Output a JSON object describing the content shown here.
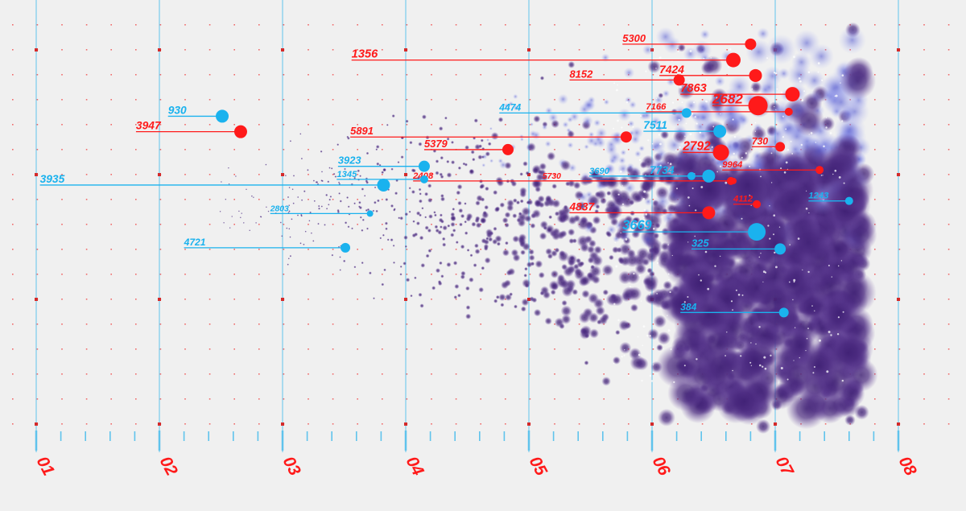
{
  "colors": {
    "background": "#f0f0f0",
    "red": "#ff1a1a",
    "blue": "#1ab2ee",
    "grid_line": "#5fc3ec",
    "grid_dot": "#f06a6a",
    "cloud": "#4b2a80",
    "cloud_light": "#7f86e2"
  },
  "chart_data": {
    "type": "scatter",
    "xlim": [
      0.95,
      8.1
    ],
    "ylim": [
      0,
      10
    ],
    "grid": true,
    "x_ticks": [
      {
        "value": 1,
        "label": "01"
      },
      {
        "value": 2,
        "label": "02"
      },
      {
        "value": 3,
        "label": "03"
      },
      {
        "value": 4,
        "label": "04"
      },
      {
        "value": 5,
        "label": "05"
      },
      {
        "value": 6,
        "label": "06"
      },
      {
        "value": 7,
        "label": "07"
      },
      {
        "value": 8,
        "label": "08"
      }
    ],
    "series": [
      {
        "color": "red",
        "points": [
          {
            "label": "5300",
            "x": 6.8,
            "y": 9.39,
            "label_x": 5.76,
            "r": 7
          },
          {
            "label": "1356",
            "x": 6.66,
            "y": 9.0,
            "label_x": 3.56,
            "r": 9
          },
          {
            "label": "7424",
            "x": 6.84,
            "y": 8.62,
            "label_x": 6.06,
            "r": 8
          },
          {
            "label": "8152",
            "x": 6.22,
            "y": 8.51,
            "label_x": 5.33,
            "r": 7
          },
          {
            "label": "7863",
            "x": 7.14,
            "y": 8.16,
            "label_x": 6.23,
            "r": 9
          },
          {
            "label": "2682",
            "x": 6.86,
            "y": 7.88,
            "label_x": 6.49,
            "r": 12
          },
          {
            "label": "7166",
            "x": 7.11,
            "y": 7.73,
            "label_x": 5.95,
            "r": 5
          },
          {
            "label": "3947",
            "x": 2.66,
            "y": 7.24,
            "label_x": 1.81,
            "r": 8
          },
          {
            "label": "5891",
            "x": 5.79,
            "y": 7.11,
            "label_x": 3.55,
            "r": 7
          },
          {
            "label": "2792",
            "x": 6.56,
            "y": 6.73,
            "label_x": 6.25,
            "r": 10
          },
          {
            "label": "730",
            "x": 7.04,
            "y": 6.87,
            "label_x": 6.81,
            "r": 6
          },
          {
            "label": "5379",
            "x": 4.83,
            "y": 6.8,
            "label_x": 4.15,
            "r": 7
          },
          {
            "label": "9964",
            "x": 7.36,
            "y": 6.3,
            "label_x": 6.57,
            "r": 5
          },
          {
            "label": "2408",
            "x": 6.64,
            "y": 6.03,
            "label_x": 4.06,
            "r": 5
          },
          {
            "label": "5730",
            "x": 6.66,
            "y": 6.03,
            "label_x": 5.11,
            "r": 4
          },
          {
            "label": "4112",
            "x": 6.85,
            "y": 5.46,
            "label_x": 6.66,
            "r": 5
          },
          {
            "label": "4837",
            "x": 6.46,
            "y": 5.25,
            "label_x": 5.33,
            "r": 8
          }
        ]
      },
      {
        "color": "blue",
        "points": [
          {
            "label": "930",
            "x": 2.51,
            "y": 7.62,
            "label_x": 2.07,
            "r": 8
          },
          {
            "label": "4474",
            "x": 6.28,
            "y": 7.7,
            "label_x": 4.76,
            "r": 6
          },
          {
            "label": "7511",
            "x": 6.55,
            "y": 7.25,
            "label_x": 5.93,
            "r": 8
          },
          {
            "label": "3923",
            "x": 4.15,
            "y": 6.39,
            "label_x": 3.45,
            "r": 7
          },
          {
            "label": "1345",
            "x": 4.15,
            "y": 6.07,
            "label_x": 3.44,
            "r": 5
          },
          {
            "label": "3935",
            "x": 3.82,
            "y": 5.93,
            "label_x": 1.03,
            "r": 8
          },
          {
            "label": "3690",
            "x": 6.32,
            "y": 6.15,
            "label_x": 5.49,
            "r": 5
          },
          {
            "label": "7734",
            "x": 6.46,
            "y": 6.15,
            "label_x": 5.98,
            "r": 8
          },
          {
            "label": "1243",
            "x": 7.6,
            "y": 5.54,
            "label_x": 7.27,
            "r": 5
          },
          {
            "label": "2803",
            "x": 3.71,
            "y": 5.23,
            "label_x": 2.9,
            "r": 4
          },
          {
            "label": "3669",
            "x": 6.85,
            "y": 4.78,
            "label_x": 5.76,
            "r": 11
          },
          {
            "label": "4721",
            "x": 3.51,
            "y": 4.39,
            "label_x": 2.2,
            "r": 6
          },
          {
            "label": "325",
            "x": 7.04,
            "y": 4.36,
            "label_x": 6.32,
            "r": 7
          },
          {
            "label": "384",
            "x": 7.07,
            "y": 2.8,
            "label_x": 6.23,
            "r": 6
          }
        ]
      }
    ]
  }
}
